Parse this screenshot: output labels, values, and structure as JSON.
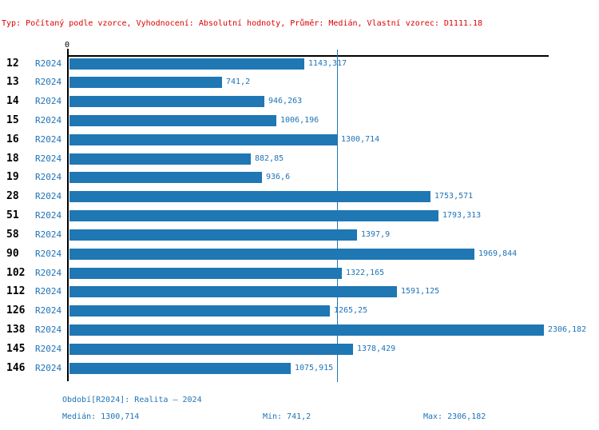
{
  "header": {
    "info_line": "Typ: Počítaný podle vzorce, Vyhodnocení: Absolutní hodnoty, Průměr: Medián, Vlastní vzorec: D1111.18"
  },
  "chart_data": {
    "type": "bar",
    "orientation": "horizontal",
    "title": "",
    "axis_origin_label": "0",
    "series_label": "R2024",
    "categories": [
      "12",
      "13",
      "14",
      "15",
      "16",
      "18",
      "19",
      "28",
      "51",
      "58",
      "90",
      "102",
      "112",
      "126",
      "138",
      "145",
      "146"
    ],
    "values": [
      1143.317,
      741.2,
      946.263,
      1006.196,
      1300.714,
      882.85,
      936.6,
      1753.571,
      1793.313,
      1397.9,
      1969.844,
      1322.165,
      1591.125,
      1265.25,
      2306.182,
      1378.429,
      1075.915
    ],
    "value_labels": [
      "1143,317",
      "741,2",
      "946,263",
      "1006,196",
      "1300,714",
      "882,85",
      "936,6",
      "1753,571",
      "1793,313",
      "1397,9",
      "1969,844",
      "1322,165",
      "1591,125",
      "1265,25",
      "2306,182",
      "1378,429",
      "1075,915"
    ],
    "xlim": [
      0,
      2332
    ],
    "median_value": 1300.714,
    "grid": "off",
    "legend": "none",
    "bar_color": "#1f77b4",
    "median_line_color": "#1f77b4"
  },
  "footer": {
    "period_label": "Období[R2024]: Realita – 2024",
    "median_label": "Medián: 1300,714",
    "min_label": "Min: 741,2",
    "max_label": "Max: 2306,182"
  },
  "colors": {
    "header_text": "#dd0000",
    "blue_text": "#1e73b8",
    "bar_fill": "#1f77b4",
    "axis": "#000000"
  }
}
